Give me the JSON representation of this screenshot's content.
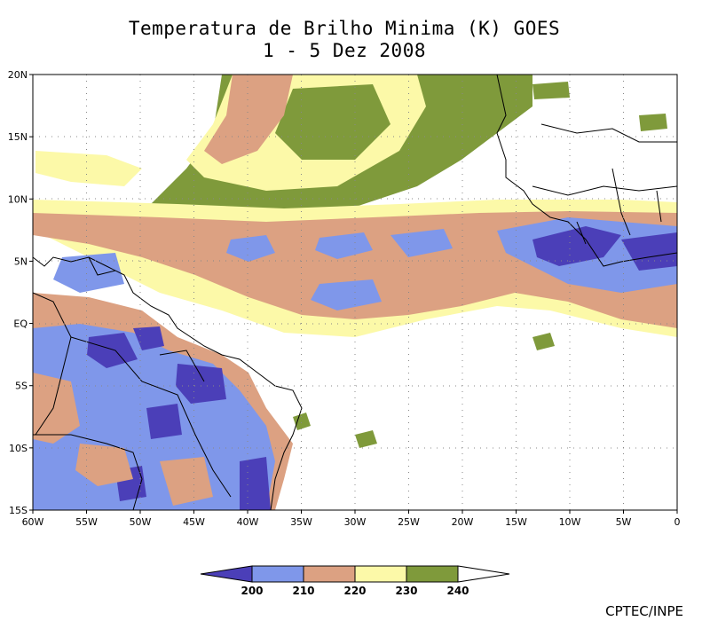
{
  "title_line1": "Temperatura de Brilho Minima (K) GOES",
  "title_line2": "1 - 5 Dez 2008",
  "lon_labels": [
    "60W",
    "55W",
    "50W",
    "45W",
    "40W",
    "35W",
    "30W",
    "25W",
    "20W",
    "15W",
    "10W",
    "5W",
    "0"
  ],
  "lat_labels": [
    "20N",
    "15N",
    "10N",
    "5N",
    "EQ",
    "5S",
    "10S",
    "15S"
  ],
  "colorbar": {
    "ticks": [
      "200",
      "210",
      "220",
      "230",
      "240"
    ],
    "colors": [
      "#4b3fb8",
      "#7f97ea",
      "#dca182",
      "#fcf9a8",
      "#7f9a3b"
    ]
  },
  "credit": "CPTEC/INPE",
  "colors": {
    "land_border": "#000000",
    "grid": "#888888"
  }
}
